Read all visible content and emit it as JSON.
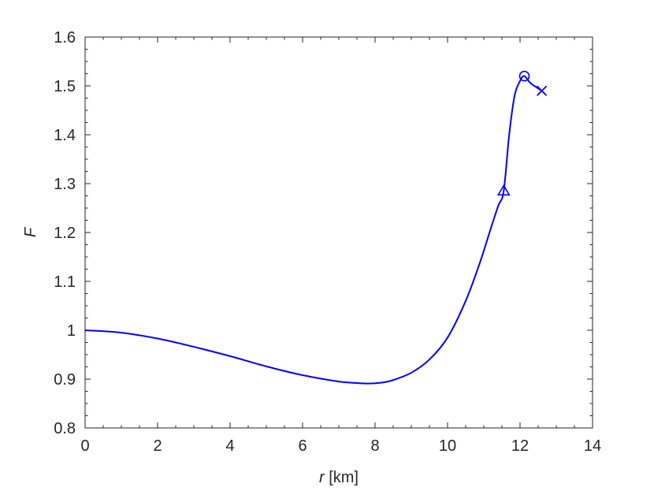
{
  "chart_data": {
    "type": "line",
    "xlabel_var": "r",
    "xlabel_unit": " [km]",
    "ylabel": "F",
    "xlim": [
      0,
      14
    ],
    "ylim": [
      0.8,
      1.6
    ],
    "xticks": [
      "0",
      "2",
      "4",
      "6",
      "8",
      "10",
      "12",
      "14"
    ],
    "yticks": [
      "0.8",
      "0.9",
      "1",
      "1.1",
      "1.2",
      "1.3",
      "1.4",
      "1.5",
      "1.6"
    ],
    "grid": false,
    "line_color": "#0000ff",
    "series": [
      {
        "x": [
          0,
          1,
          2,
          3,
          4,
          5,
          6,
          7,
          7.5,
          7.8,
          8.2,
          8.5,
          9,
          9.5,
          10,
          10.5,
          10.9,
          11.2,
          11.4,
          11.55,
          11.7,
          11.85,
          12.0,
          12.12,
          12.3,
          12.6
        ],
        "y": [
          1.0,
          0.995,
          0.983,
          0.966,
          0.947,
          0.926,
          0.908,
          0.895,
          0.892,
          0.891,
          0.893,
          0.898,
          0.913,
          0.94,
          0.985,
          1.06,
          1.14,
          1.21,
          1.255,
          1.285,
          1.4,
          1.48,
          1.51,
          1.52,
          1.505,
          1.49
        ]
      }
    ],
    "markers": [
      {
        "symbol": "triangle",
        "x": 11.55,
        "y": 1.285
      },
      {
        "symbol": "circle",
        "x": 12.12,
        "y": 1.52
      },
      {
        "symbol": "cross",
        "x": 12.6,
        "y": 1.49
      }
    ]
  }
}
